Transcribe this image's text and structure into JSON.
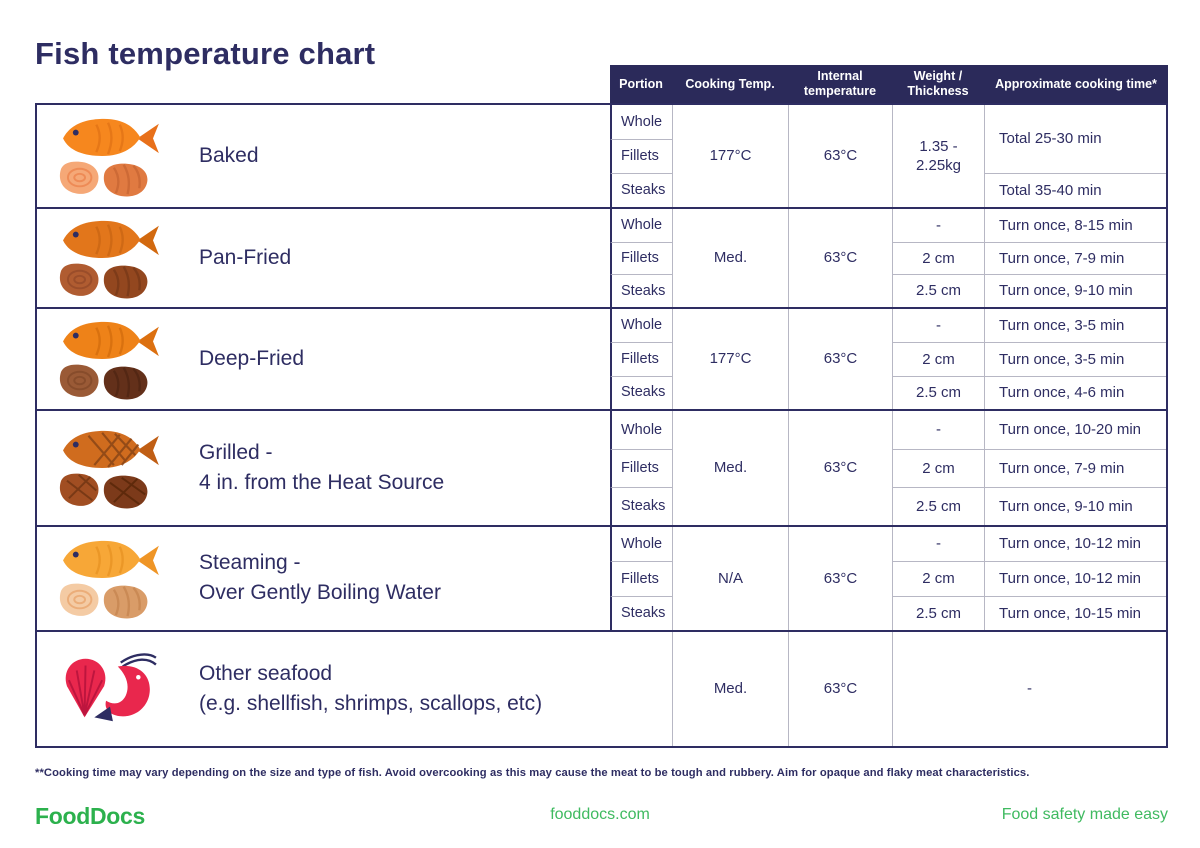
{
  "title": "Fish temperature chart",
  "columns": [
    "Portion",
    "Cooking Temp.",
    "Internal temperature",
    "Weight / Thickness",
    "Approximate cooking time*"
  ],
  "rows": [
    {
      "id": "baked",
      "method_line1": "Baked",
      "method_line2": "",
      "icon": "baked-fish-icon",
      "palette": {
        "body": "#F6871E",
        "fin": "#E8701A",
        "detail": "#D96A12",
        "p1": "#F5A877",
        "p1d": "#E97B45",
        "p2": "#E07A41",
        "p2d": "#C05F2E",
        "grill": false
      },
      "portions": [
        "Whole",
        "Fillets",
        "Steaks"
      ],
      "cooking_temp": "177°C",
      "internal_temp": "63°C",
      "weight": {
        "mode": "span",
        "value": "1.35 - 2.25kg"
      },
      "time": {
        "mode": "split",
        "values": [
          "Total 25-30 min",
          "Total 35-40 min"
        ]
      }
    },
    {
      "id": "pan-fried",
      "method_line1": "Pan-Fried",
      "method_line2": "",
      "icon": "pan-fried-fish-icon",
      "palette": {
        "body": "#E2761B",
        "fin": "#D2690F",
        "detail": "#C05E10",
        "p1": "#B05C31",
        "p1d": "#8F4526",
        "p2": "#93471F",
        "p2d": "#6E3415",
        "grill": false
      },
      "portions": [
        "Whole",
        "Fillets",
        "Steaks"
      ],
      "cooking_temp": "Med.",
      "internal_temp": "63°C",
      "weight": {
        "mode": "rows",
        "values": [
          "-",
          "2 cm",
          "2.5 cm"
        ]
      },
      "time": {
        "mode": "rows",
        "values": [
          "Turn once, 8-15 min",
          "Turn once, 7-9 min",
          "Turn once, 9-10 min"
        ]
      }
    },
    {
      "id": "deep-fried",
      "method_line1": "Deep-Fried",
      "method_line2": "",
      "icon": "deep-fried-fish-icon",
      "palette": {
        "body": "#EE8218",
        "fin": "#DC7010",
        "detail": "#C96409",
        "p1": "#9A5A36",
        "p1d": "#7C4527",
        "p2": "#63301A",
        "p2d": "#4A2110",
        "grill": false
      },
      "portions": [
        "Whole",
        "Fillets",
        "Steaks"
      ],
      "cooking_temp": "177°C",
      "internal_temp": "63°C",
      "weight": {
        "mode": "rows",
        "values": [
          "-",
          "2 cm",
          "2.5 cm"
        ]
      },
      "time": {
        "mode": "rows",
        "values": [
          "Turn once, 3-5 min",
          "Turn once, 3-5 min",
          "Turn once, 4-6 min"
        ]
      }
    },
    {
      "id": "grilled",
      "method_line1": "Grilled -",
      "method_line2": "4 in. from the Heat Source",
      "icon": "grilled-fish-icon",
      "palette": {
        "body": "#D06C1E",
        "fin": "#C05E14",
        "detail": "#8A4516",
        "p1": "#A14E22",
        "p1d": "#6F3413",
        "p2": "#7C3A1A",
        "p2d": "#562508",
        "grill": true
      },
      "portions": [
        "Whole",
        "Fillets",
        "Steaks"
      ],
      "cooking_temp": "Med.",
      "internal_temp": "63°C",
      "weight": {
        "mode": "rows",
        "values": [
          "-",
          "2 cm",
          "2.5 cm"
        ]
      },
      "time": {
        "mode": "rows",
        "values": [
          "Turn once, 10-20 min",
          "Turn once, 7-9 min",
          "Turn once, 9-10 min"
        ]
      }
    },
    {
      "id": "steaming",
      "method_line1": "Steaming -",
      "method_line2": "Over Gently Boiling Water",
      "icon": "steamed-fish-icon",
      "palette": {
        "body": "#F7A737",
        "fin": "#EF9526",
        "detail": "#E18A1C",
        "p1": "#F4CBA4",
        "p1d": "#E79C63",
        "p2": "#D99C68",
        "p2d": "#BF7F49",
        "grill": false
      },
      "portions": [
        "Whole",
        "Fillets",
        "Steaks"
      ],
      "cooking_temp": "N/A",
      "internal_temp": "63°C",
      "weight": {
        "mode": "rows",
        "values": [
          "-",
          "2 cm",
          "2.5 cm"
        ]
      },
      "time": {
        "mode": "rows",
        "values": [
          "Turn once, 10-12 min",
          "Turn once, 10-12 min",
          "Turn once, 10-15 min"
        ]
      }
    },
    {
      "id": "other-seafood",
      "method_line1": "Other seafood",
      "method_line2": "(e.g. shellfish, shrimps, scallops, etc)",
      "icon": "shellfish-shrimp-icon",
      "palette": {
        "shell": "#E9274D",
        "shell_d": "#B2123B",
        "shrimp": "#E9274D",
        "navy": "#2E2D62"
      },
      "portions": null,
      "cooking_temp": "Med.",
      "internal_temp": "63°C",
      "merged_value": "-"
    }
  ],
  "footnote": "**Cooking time may vary depending on the size and type of fish. Avoid overcooking as this may cause the meat to be tough and rubbery. Aim for opaque and flaky meat characteristics.",
  "footer": {
    "logo": "FoodDocs",
    "website": "fooddocs.com",
    "tagline": "Food safety made easy"
  },
  "colors": {
    "navy": "#2E2D62",
    "header_background": "#2B2A5A",
    "grid_line_gray": "#B7B7C4",
    "logo_green": "#2CB14D",
    "footer_green": "#3FBA60"
  }
}
